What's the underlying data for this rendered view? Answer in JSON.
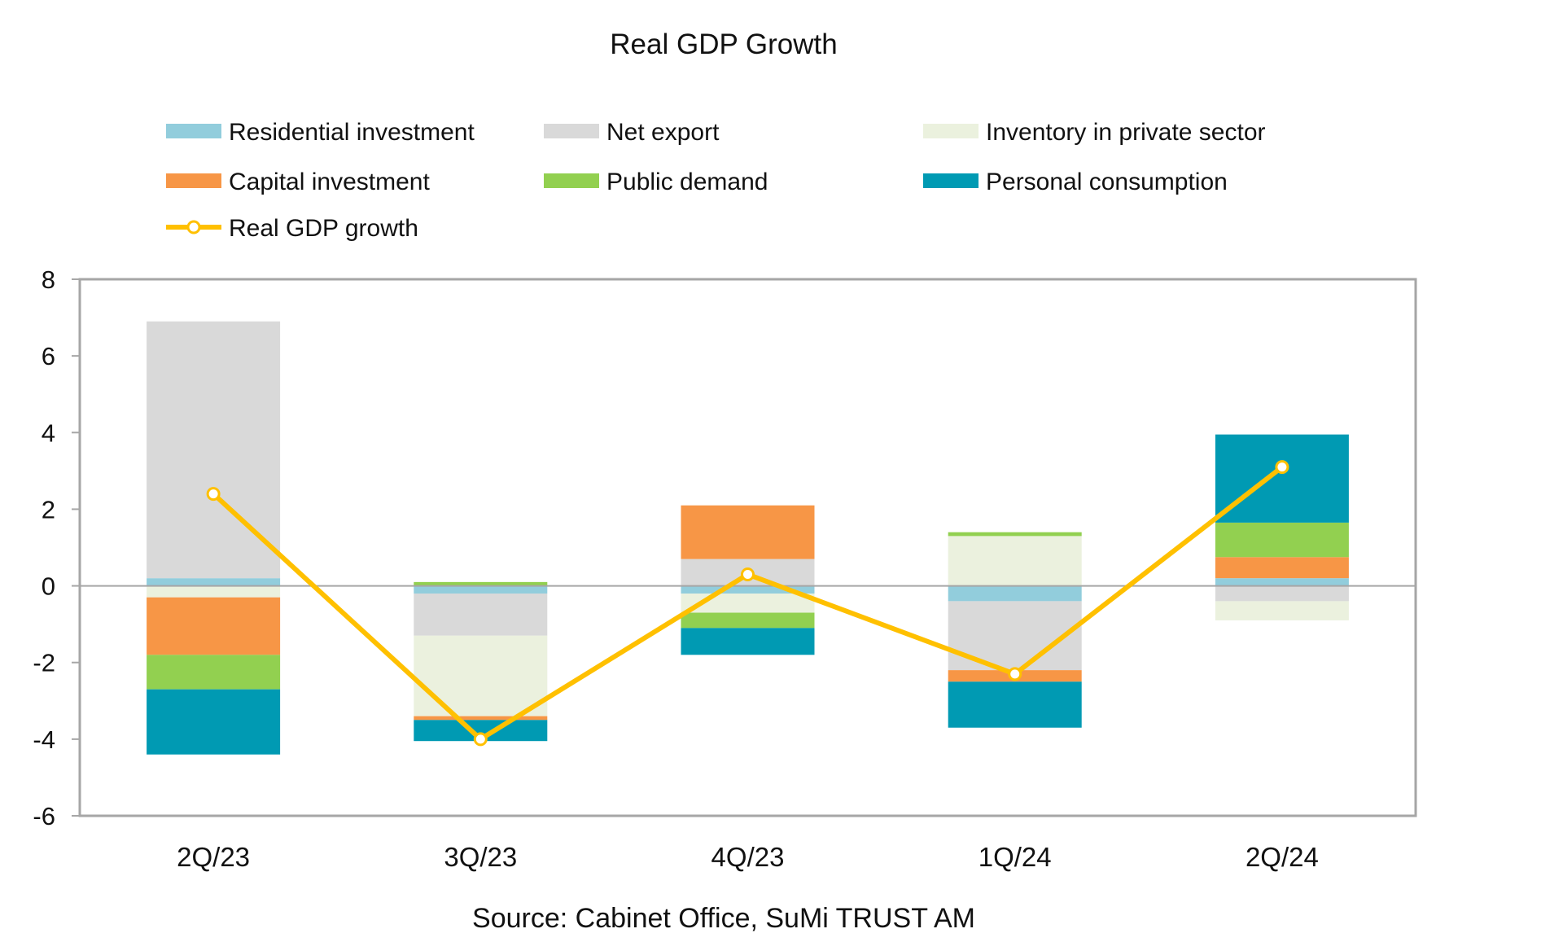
{
  "chart_data": {
    "type": "bar",
    "stacked": true,
    "title": "Real GDP Growth",
    "source": "Source: Cabinet Office, SuMi TRUST AM",
    "categories": [
      "2Q/23",
      "3Q/23",
      "4Q/23",
      "1Q/24",
      "2Q/24"
    ],
    "ylim": [
      -6,
      8
    ],
    "yticks": [
      8,
      6,
      4,
      2,
      0,
      -2,
      -4,
      -6
    ],
    "grid": false,
    "legend_placement": "top",
    "series": [
      {
        "name": "Residential investment",
        "color": "#92cddc",
        "values": [
          0.2,
          -0.2,
          -0.2,
          -0.4,
          0.2
        ]
      },
      {
        "name": "Net export",
        "color": "#d9d9d9",
        "values": [
          6.7,
          -1.1,
          0.7,
          -1.8,
          -0.4
        ]
      },
      {
        "name": "Inventory in private sector",
        "color": "#ebf1de",
        "values": [
          -0.3,
          -2.1,
          -0.5,
          1.3,
          -0.5
        ]
      },
      {
        "name": "Capital investment",
        "color": "#f79646",
        "values": [
          -1.5,
          -0.1,
          1.4,
          -0.3,
          0.55
        ]
      },
      {
        "name": "Public demand",
        "color": "#92d050",
        "values": [
          -0.9,
          0.1,
          -0.4,
          0.1,
          0.9
        ]
      },
      {
        "name": "Personal consumption",
        "color": "#009ab3",
        "values": [
          -1.7,
          -0.55,
          -0.7,
          -1.2,
          2.3
        ]
      }
    ],
    "line_series": {
      "name": "Real GDP growth",
      "color": "#ffc000",
      "values": [
        2.4,
        -4.0,
        0.3,
        -2.3,
        3.1
      ]
    }
  }
}
